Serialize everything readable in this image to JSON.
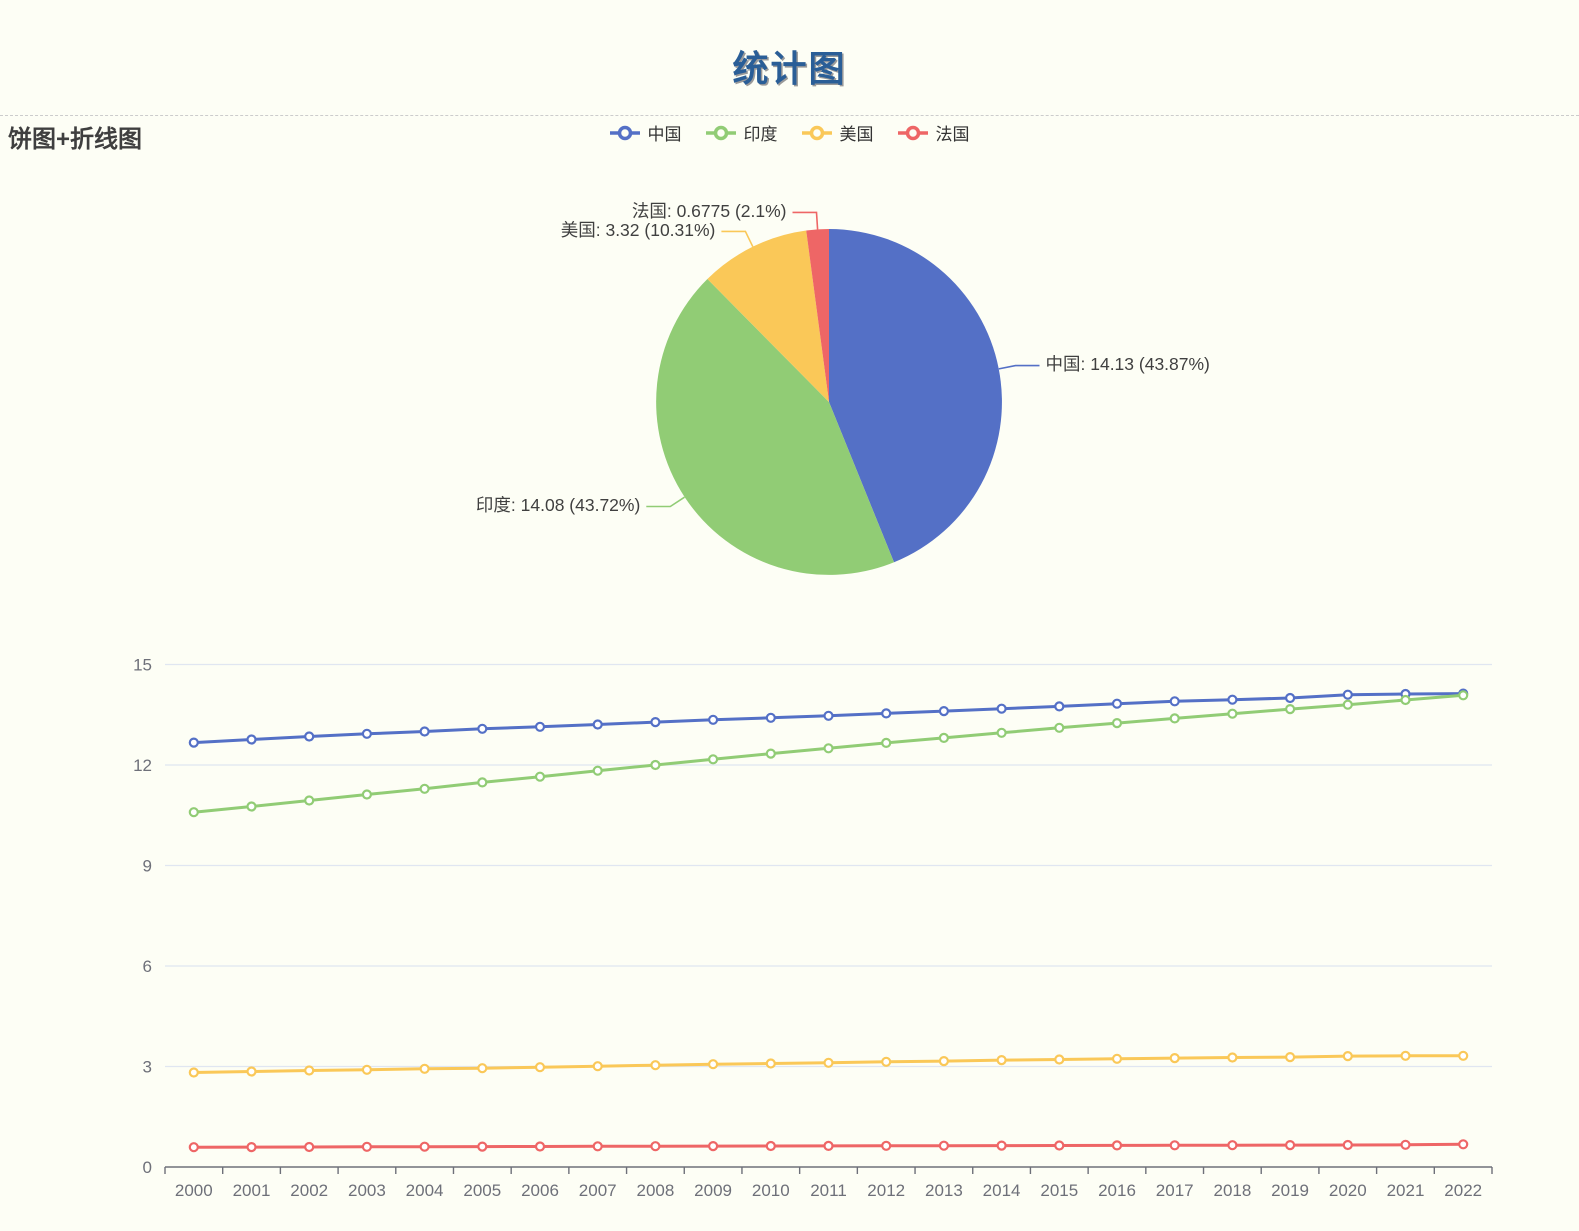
{
  "page": {
    "title": "统计图",
    "background": "#FDFEF5",
    "title_color": "#2A5E97"
  },
  "section": {
    "label": "饼图+折线图"
  },
  "legend": {
    "items": [
      {
        "label": "中国",
        "color": "#5470C6"
      },
      {
        "label": "印度",
        "color": "#91CC75"
      },
      {
        "label": "美国",
        "color": "#FAC858"
      },
      {
        "label": "法国",
        "color": "#EE6666"
      }
    ]
  },
  "chart_data": [
    {
      "type": "pie",
      "direction": "clockwise",
      "start_angle": "top",
      "label_position": "outside",
      "slices": [
        {
          "label": "中国",
          "value": 14.13,
          "percent": 43.87,
          "display": "中国: 14.13 (43.87%)",
          "color": "#5470C6"
        },
        {
          "label": "印度",
          "value": 14.08,
          "percent": 43.72,
          "display": "印度: 14.08 (43.72%)",
          "color": "#91CC75"
        },
        {
          "label": "美国",
          "value": 3.32,
          "percent": 10.31,
          "display": "美国: 3.32 (10.31%)",
          "color": "#FAC858"
        },
        {
          "label": "法国",
          "value": 0.6775,
          "percent": 2.1,
          "display": "法国: 0.6775 (2.1%)",
          "color": "#EE6666"
        }
      ]
    },
    {
      "type": "line",
      "x": [
        2000,
        2001,
        2002,
        2003,
        2004,
        2005,
        2006,
        2007,
        2008,
        2009,
        2010,
        2011,
        2012,
        2013,
        2014,
        2015,
        2016,
        2017,
        2018,
        2019,
        2020,
        2021,
        2022
      ],
      "series": [
        {
          "name": "中国",
          "color": "#5470C6",
          "values": [
            12.67,
            12.76,
            12.85,
            12.93,
            13.0,
            13.08,
            13.14,
            13.21,
            13.28,
            13.35,
            13.41,
            13.47,
            13.54,
            13.61,
            13.68,
            13.75,
            13.83,
            13.9,
            13.95,
            14.0,
            14.1,
            14.12,
            14.13
          ]
        },
        {
          "name": "印度",
          "color": "#91CC75",
          "values": [
            10.59,
            10.76,
            10.94,
            11.12,
            11.29,
            11.48,
            11.65,
            11.83,
            12.0,
            12.17,
            12.34,
            12.5,
            12.66,
            12.81,
            12.96,
            13.11,
            13.25,
            13.39,
            13.53,
            13.67,
            13.8,
            13.94,
            14.08
          ]
        },
        {
          "name": "美国",
          "color": "#FAC858",
          "values": [
            2.82,
            2.85,
            2.88,
            2.9,
            2.93,
            2.95,
            2.98,
            3.01,
            3.04,
            3.07,
            3.09,
            3.11,
            3.14,
            3.16,
            3.19,
            3.21,
            3.23,
            3.25,
            3.27,
            3.28,
            3.31,
            3.32,
            3.32
          ]
        },
        {
          "name": "法国",
          "color": "#EE6666",
          "values": [
            0.59,
            0.594,
            0.598,
            0.602,
            0.606,
            0.61,
            0.613,
            0.617,
            0.62,
            0.624,
            0.627,
            0.63,
            0.633,
            0.636,
            0.639,
            0.642,
            0.645,
            0.648,
            0.65,
            0.653,
            0.657,
            0.662,
            0.6775
          ]
        }
      ],
      "ylim": [
        0,
        15
      ],
      "yticks": [
        0,
        3,
        6,
        9,
        12,
        15
      ],
      "grid": true,
      "legend_position": "top-center"
    }
  ]
}
